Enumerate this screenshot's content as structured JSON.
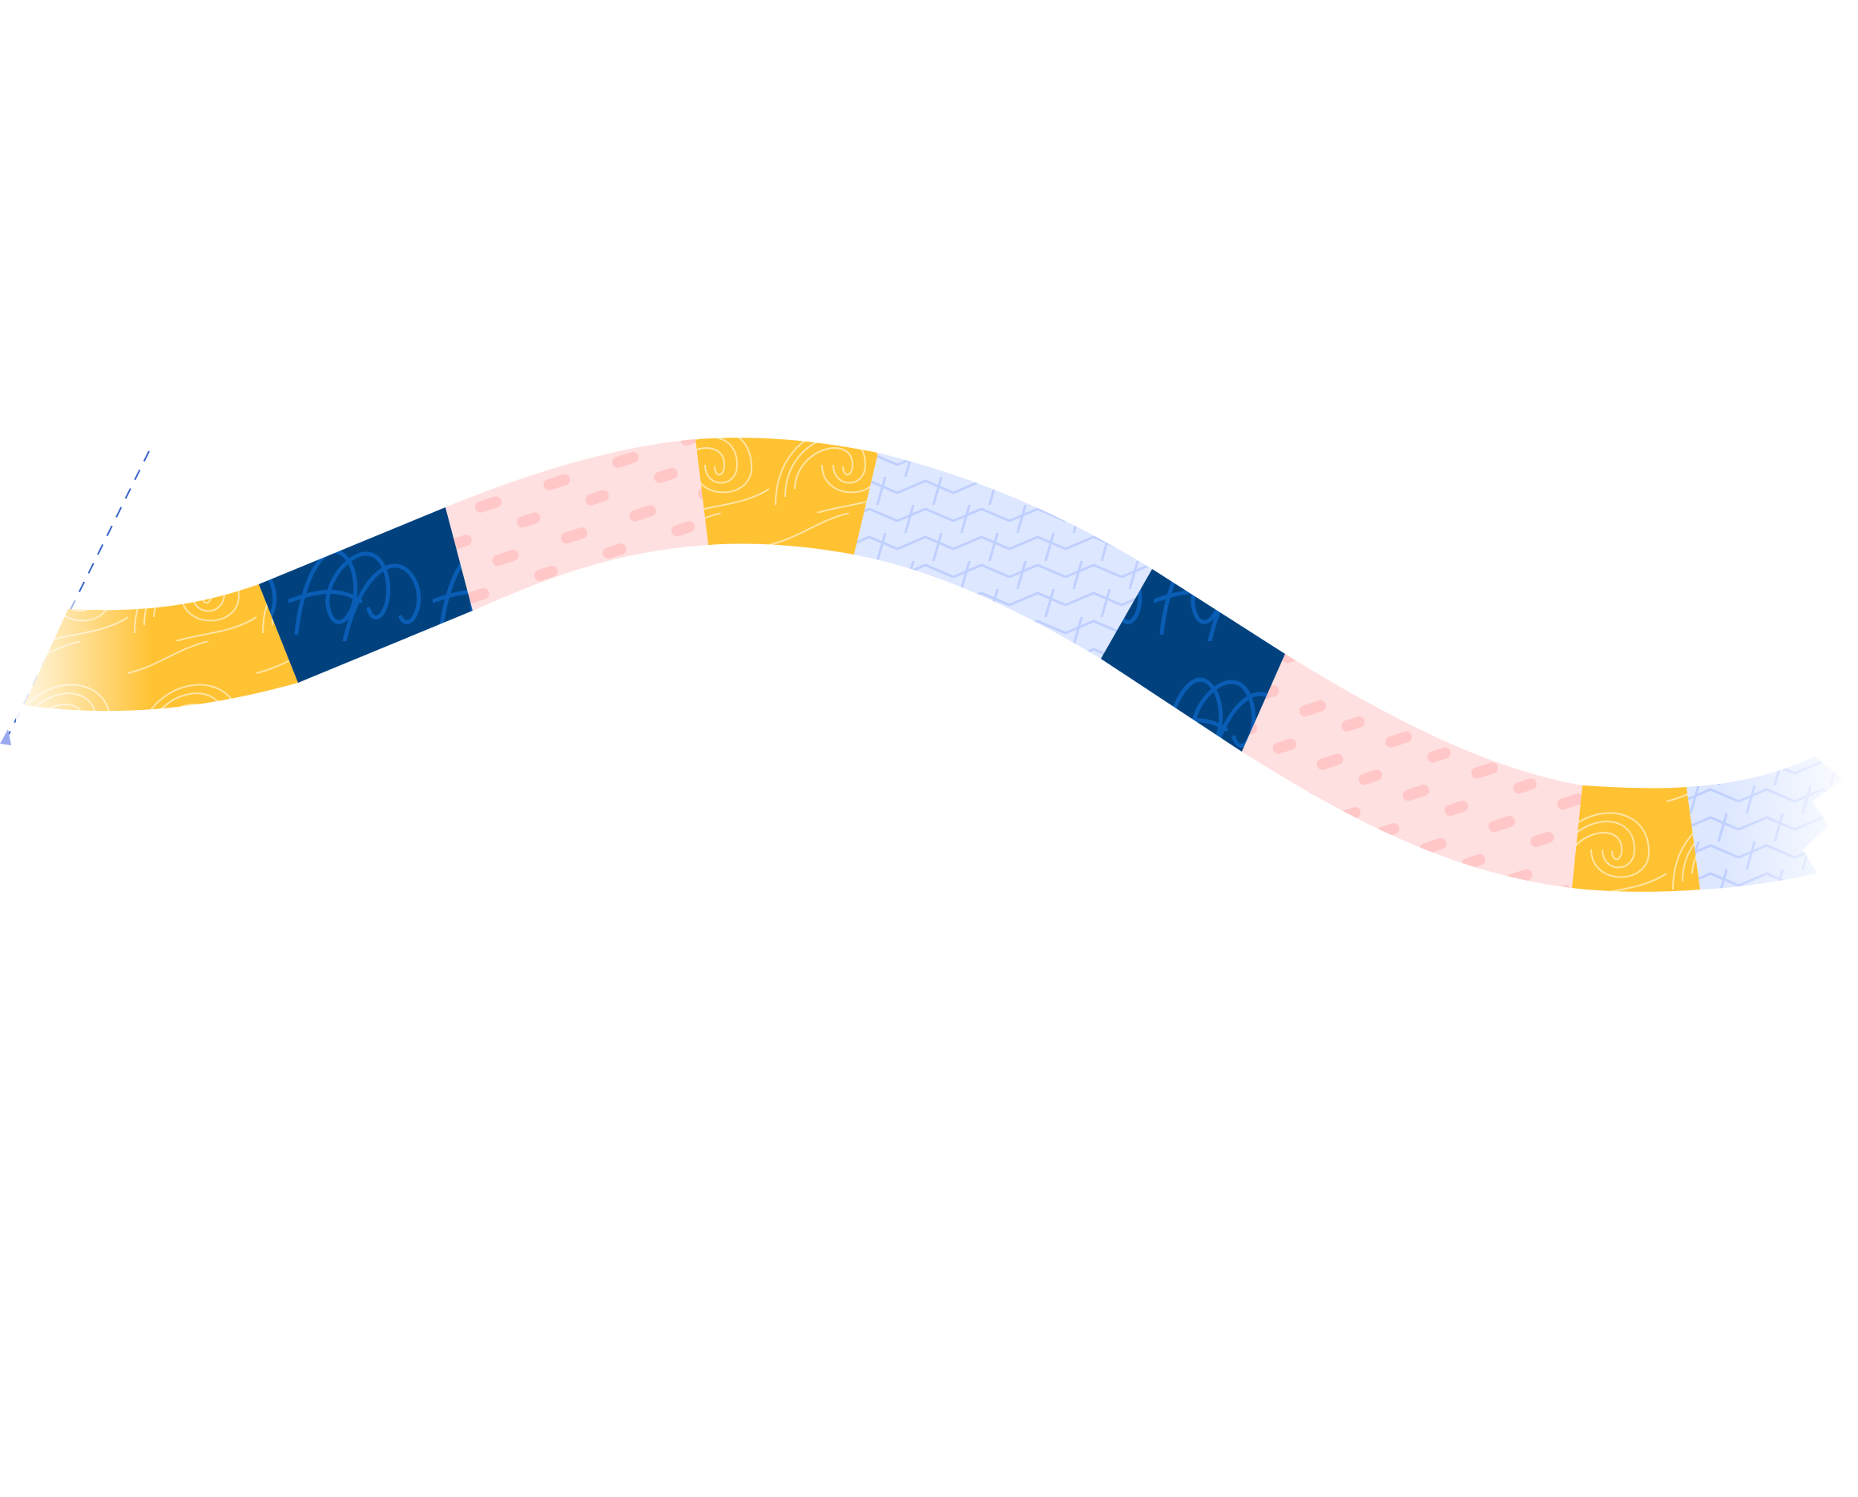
{
  "illustration": {
    "name": "patterned-wavy-ribbon",
    "background": "#ffffff",
    "colors": {
      "yellow": "#FFC233",
      "navy": "#00417E",
      "navy_scribble": "#0A5FB8",
      "pink": "#FFE0E0",
      "pink_dash": "#FFC7C7",
      "lavender": "#DDE7FF",
      "lavender_line": "#BFCFFF",
      "dash_line": "#3A64C8",
      "marker": "#9AA8F0"
    },
    "segments": [
      {
        "pattern": "yellow-swirl"
      },
      {
        "pattern": "navy-scribble"
      },
      {
        "pattern": "pink-dashes"
      },
      {
        "pattern": "yellow-swirl"
      },
      {
        "pattern": "lavender-chevron"
      },
      {
        "pattern": "navy-scribble"
      },
      {
        "pattern": "pink-dashes"
      },
      {
        "pattern": "yellow-swirl"
      },
      {
        "pattern": "lavender-chevron"
      }
    ]
  }
}
